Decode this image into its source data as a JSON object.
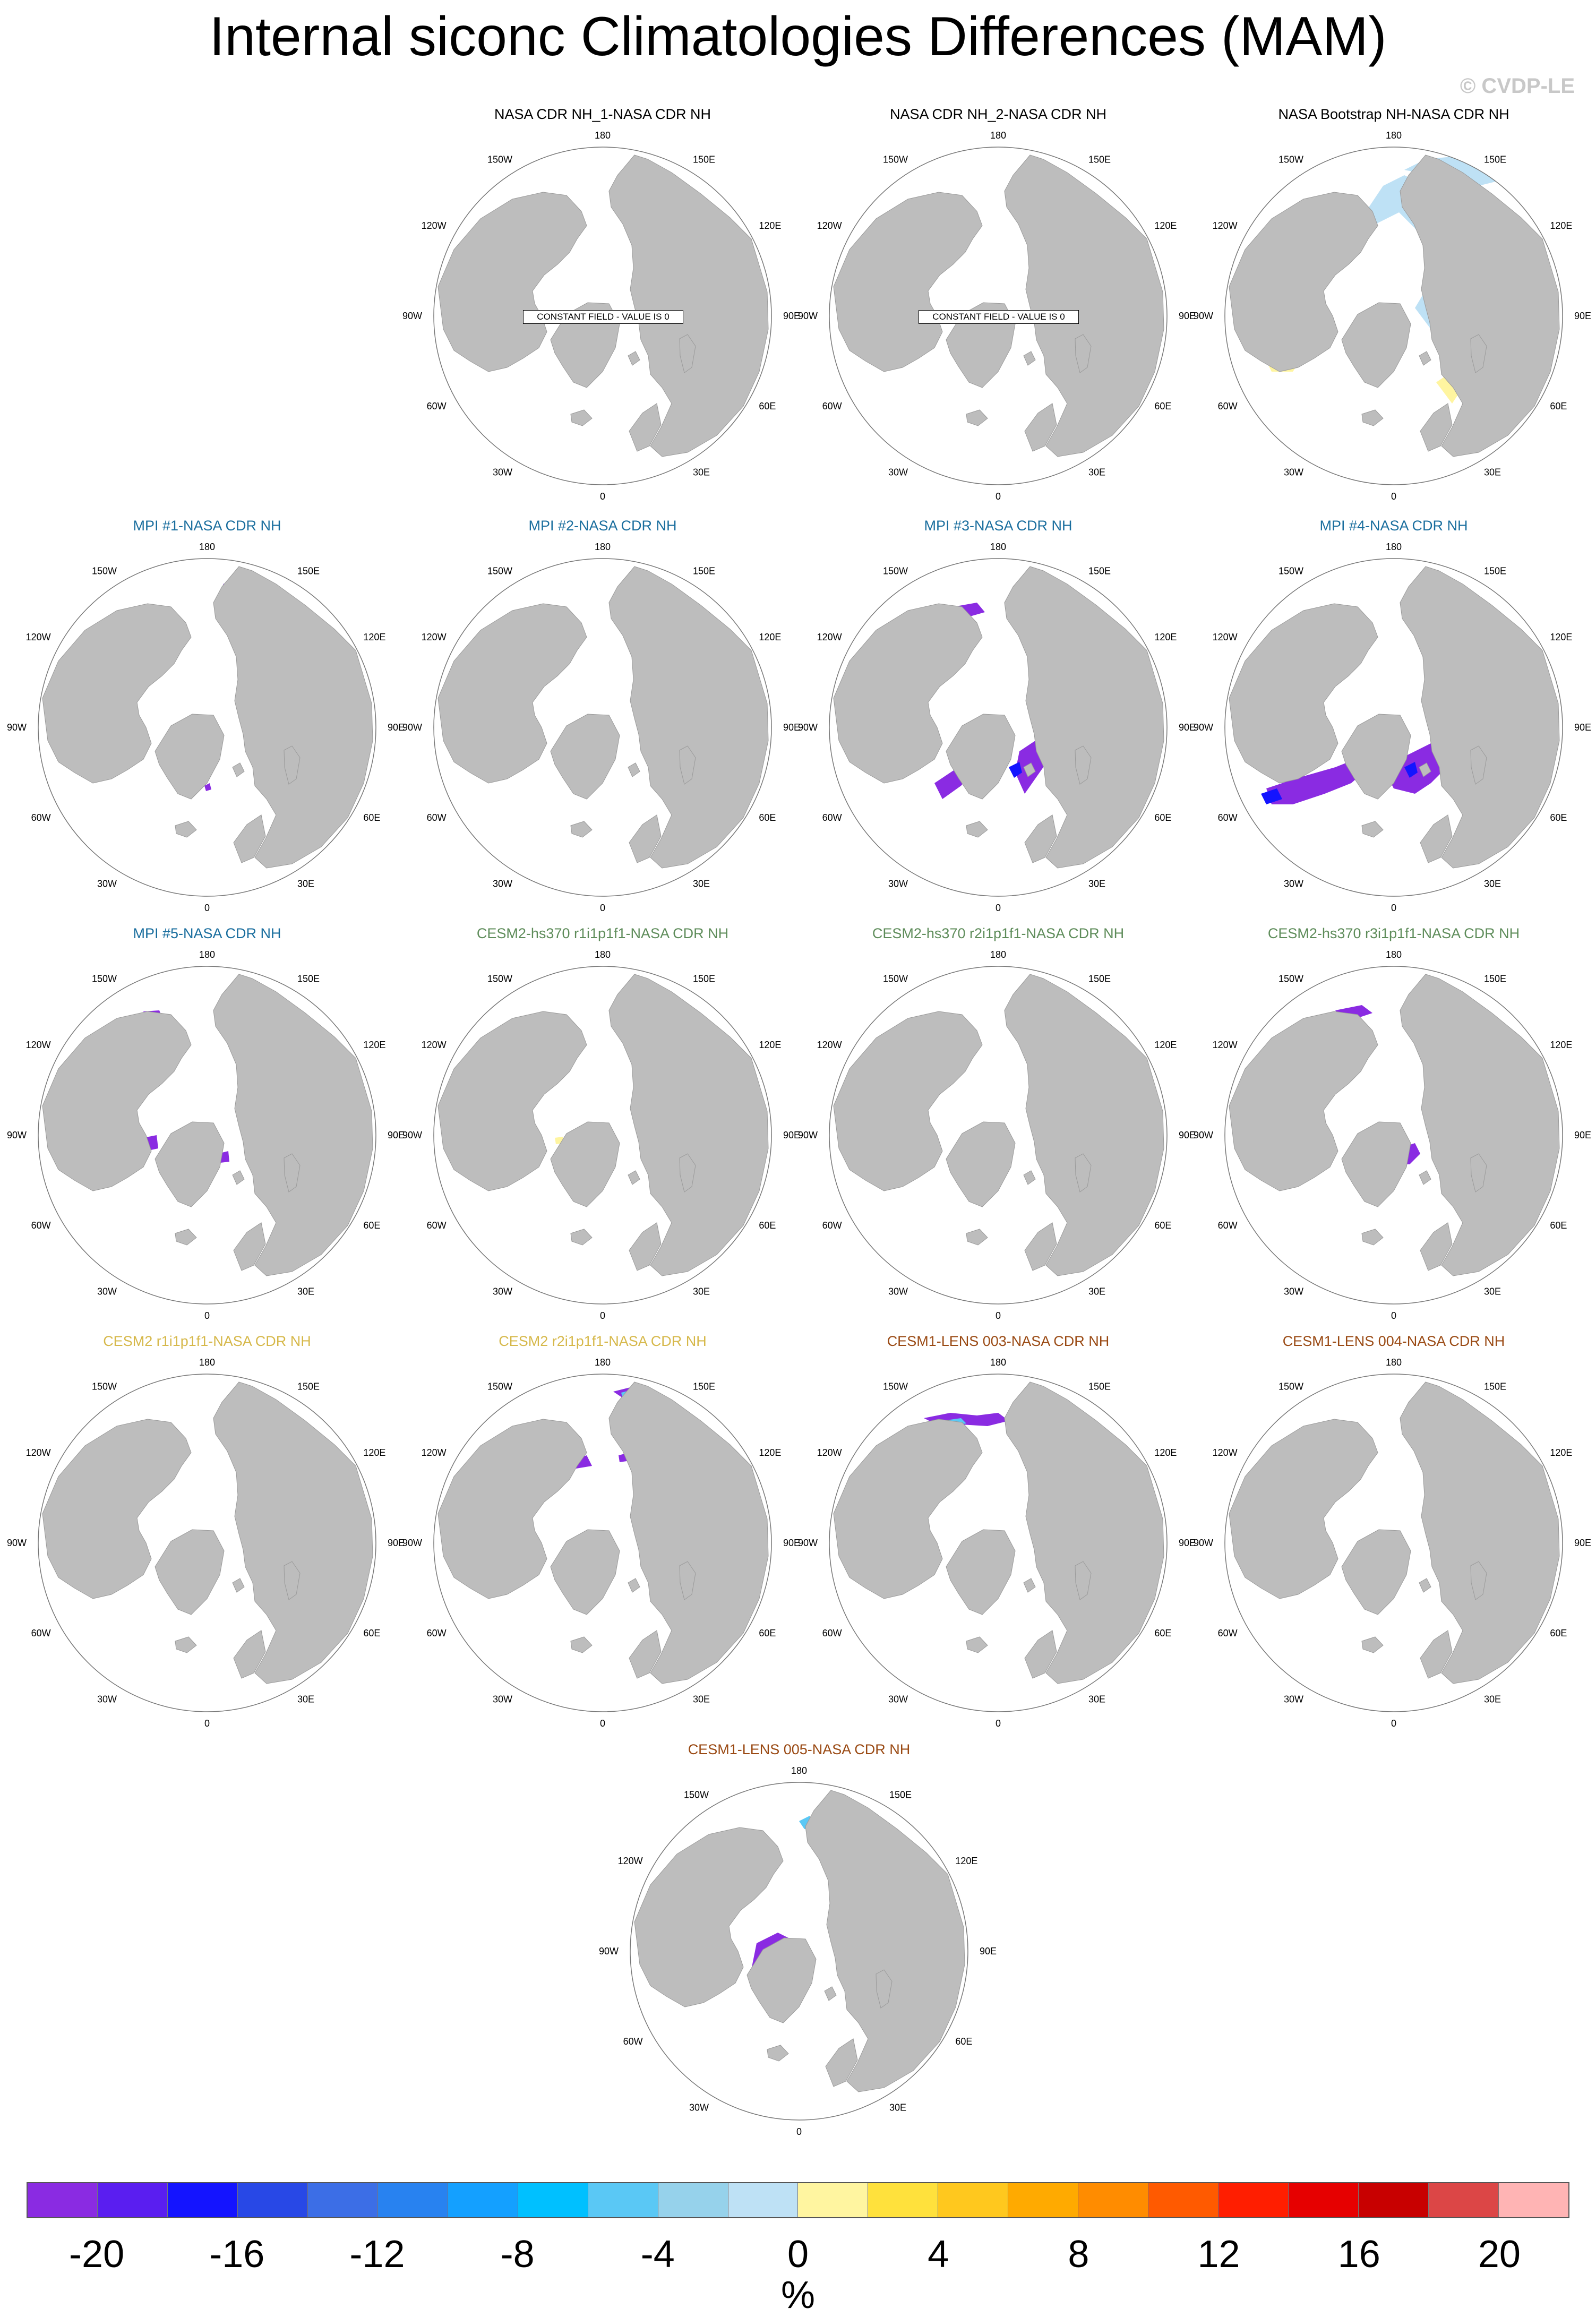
{
  "title": "Internal siconc Climatologies Differences (MAM)",
  "credit": "© CVDP-LE",
  "lon_labels": [
    "180",
    "150E",
    "120E",
    "90E",
    "60E",
    "30E",
    "0",
    "30W",
    "60W",
    "90W",
    "120W",
    "150W"
  ],
  "constant_note": "CONSTANT FIELD - VALUE IS 0",
  "panels": [
    {
      "title": "NASA CDR NH_1-NASA CDR NH",
      "title_color": "#000000",
      "constant": true
    },
    {
      "title": "NASA CDR NH_2-NASA CDR NH",
      "title_color": "#000000",
      "constant": true
    },
    {
      "title": "NASA Bootstrap NH-NASA CDR NH",
      "title_color": "#000000",
      "constant": false
    },
    {
      "title": "MPI #1-NASA CDR NH",
      "title_color": "#1a6e9e",
      "constant": false
    },
    {
      "title": "MPI #2-NASA CDR NH",
      "title_color": "#1a6e9e",
      "constant": false
    },
    {
      "title": "MPI #3-NASA CDR NH",
      "title_color": "#1a6e9e",
      "constant": false
    },
    {
      "title": "MPI #4-NASA CDR NH",
      "title_color": "#1a6e9e",
      "constant": false
    },
    {
      "title": "MPI #5-NASA CDR NH",
      "title_color": "#1a6e9e",
      "constant": false
    },
    {
      "title": "CESM2-hs370 r1i1p1f1-NASA CDR NH",
      "title_color": "#5e8c5a",
      "constant": false
    },
    {
      "title": "CESM2-hs370 r2i1p1f1-NASA CDR NH",
      "title_color": "#5e8c5a",
      "constant": false
    },
    {
      "title": "CESM2-hs370 r3i1p1f1-NASA CDR NH",
      "title_color": "#5e8c5a",
      "constant": false
    },
    {
      "title": "CESM2 r1i1p1f1-NASA CDR NH",
      "title_color": "#d6b84a",
      "constant": false
    },
    {
      "title": "CESM2 r2i1p1f1-NASA CDR NH",
      "title_color": "#d6b84a",
      "constant": false
    },
    {
      "title": "CESM1-LENS 003-NASA CDR NH",
      "title_color": "#9a4a14",
      "constant": false
    },
    {
      "title": "CESM1-LENS 004-NASA CDR NH",
      "title_color": "#9a4a14",
      "constant": false
    },
    {
      "title": "CESM1-LENS 005-NASA CDR NH",
      "title_color": "#9a4a14",
      "constant": false
    }
  ],
  "colorbar": {
    "colors": [
      "#8a2be2",
      "#5a1ef0",
      "#1414ff",
      "#2848e6",
      "#3c6ee6",
      "#2882f0",
      "#14a0ff",
      "#00c0ff",
      "#5ac8f5",
      "#96d2eb",
      "#bee1f5",
      "#fff5a0",
      "#ffe13c",
      "#ffc81e",
      "#ffaa00",
      "#ff8c00",
      "#ff5a00",
      "#ff1e00",
      "#e60000",
      "#c80000",
      "#dc4646",
      "#ffb4b4"
    ],
    "tick_labels": [
      "-20",
      "-16",
      "-12",
      "-8",
      "-4",
      "0",
      "4",
      "8",
      "12",
      "16",
      "20"
    ],
    "unit": "%"
  }
}
